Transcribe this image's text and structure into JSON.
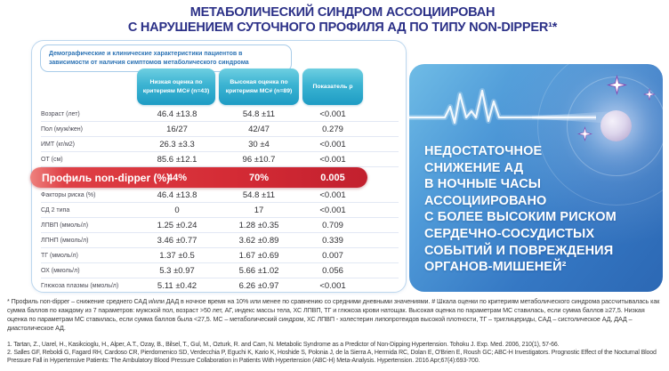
{
  "title": {
    "line1": "МЕТАБОЛИЧЕСКИЙ СИНДРОМ АССОЦИИРОВАН",
    "line2": "С НАРУШЕНИЕМ СУТОЧНОГО ПРОФИЛЯ АД ПО ТИПУ NON-DIPPER¹*"
  },
  "table": {
    "caption": "Демографические и клинические характеристики пациентов в зависимости от наличия симптомов метаболического синдрома",
    "columns": [
      "Низкая оценка по критериям МС# (n=43)",
      "Высокая оценка по критериям МС# (n=89)",
      "Показатель p"
    ],
    "rows": [
      {
        "label": "Возраст (лет)",
        "low": "46.4 ±13.8",
        "high": "54.8 ±11",
        "p": "<0.001",
        "highlight": false
      },
      {
        "label": "Пол (муж/жен)",
        "low": "16/27",
        "high": "42/47",
        "p": "0.279",
        "highlight": false
      },
      {
        "label": "ИМТ (кг/м2)",
        "low": "26.3 ±3.3",
        "high": "30 ±4",
        "p": "<0.001",
        "highlight": false
      },
      {
        "label": "ОТ (см)",
        "low": "85.6 ±12.1",
        "high": "96 ±10.7",
        "p": "<0.001",
        "highlight": false
      },
      {
        "label": "Профиль non-dipper (%)",
        "low": "44%",
        "high": "70%",
        "p": "0.005",
        "highlight": true
      },
      {
        "label": "Факторы риска (%)",
        "low": "46.4 ±13.8",
        "high": "54.8 ±11",
        "p": "<0.001",
        "highlight": false
      },
      {
        "label": "СД 2 типа",
        "low": "0",
        "high": "17",
        "p": "<0.001",
        "highlight": false
      },
      {
        "label": "ЛПВП (ммоль/л)",
        "low": "1.25 ±0.24",
        "high": "1.28 ±0.35",
        "p": "0.709",
        "highlight": false
      },
      {
        "label": "ЛПНП (ммоль/л)",
        "low": "3.46 ±0.77",
        "high": "3.62 ±0.89",
        "p": "0.339",
        "highlight": false
      },
      {
        "label": "ТГ (ммоль/л)",
        "low": "1.37 ±0.5",
        "high": "1.67 ±0.69",
        "p": "0.007",
        "highlight": false
      },
      {
        "label": "ОХ (ммоль/л)",
        "low": "5.3 ±0.97",
        "high": "5.66 ±1.02",
        "p": "0.056",
        "highlight": false
      },
      {
        "label": "Глюкоза плазмы (ммоль/л)",
        "low": "5.11 ±0.42",
        "high": "6.26 ±0.97",
        "p": "<0.001",
        "highlight": false
      }
    ]
  },
  "panel": {
    "lines": [
      "НЕДОСТАТОЧНОЕ",
      "СНИЖЕНИЕ АД",
      "В НОЧНЫЕ ЧАСЫ",
      "АССОЦИИРОВАНО",
      "С БОЛЕЕ ВЫСОКИМ РИСКОМ",
      "СЕРДЕЧНО-СОСУДИСТЫХ",
      "СОБЫТИЙ И ПОВРЕЖДЕНИЯ",
      "ОРГАНОВ-МИШЕНЕЙ²"
    ],
    "icons": [
      "ecg-line-icon",
      "moon-icon",
      "sparkle-icon"
    ]
  },
  "footnote": "* Профиль non-dipper – снижение среднего САД и/или ДАД в ночное время на 10% или менее по сравнению со средними дневными значениями.  # Шкала оценки по критериям метаболического синдрома рассчитывалась как сумма баллов по каждому из 7 параметров: мужской пол, возраст >50 лет, АГ, индекс массы тела, ХС ЛПВП, ТГ и глюкоза крови натощак.  Высокая оценка по параметрам МС ставилась, если сумма баллов  ≥27,5. Низкая оценка по параметрам МС ставилась, если сумма баллов была <27,5. МС – метаболический синдром, ХС ЛПВП - холестерин липопротеидов высокой плотности, ТГ – триглицериды, САД  – систолическое АД, ДАД  – диастолическое АД.",
  "references": [
    "1. Tartan, Z., Uarel, H., Kasikcioglu, H., Alper, A.T., Ozay, B., Bilsel, T., Gul, M., Ozturk, R. and Cam, N. Metabolic Syndrome as a Predictor of Non-Dipping Hypertension. Tohoku J. Exp. Med. 2006, 210(1), 57-66.",
    "2. Salles GF, Reboldi G, Fagard RH, Cardoso CR, Pierdomenico SD, Verdecchia P, Eguchi K, Kario K, Hoshide S, Polonia J, de la Sierra A, Hermida RC, Dolan E, O'Brien E, Roush GC; ABC-H Investigators. Prognostic Effect of the Nocturnal Blood Pressure Fall in Hypertensive Patients: The Ambulatory Blood Pressure Collaboration in Patients With Hypertension (ABC-H) Meta-Analysis. Hypertension. 2016 Apr;67(4):693-700."
  ],
  "colors": {
    "title_navy": "#2B3087",
    "caption_blue": "#2E74B5",
    "badge_teal_top": "#6ECFE1",
    "badge_teal_bottom": "#1E9CC4",
    "highlight_red": "#D42B35",
    "panel_blue_light": "#6FBCE6",
    "panel_blue_dark": "#2C68B4",
    "sparkle_purple": "#8C35A8"
  }
}
